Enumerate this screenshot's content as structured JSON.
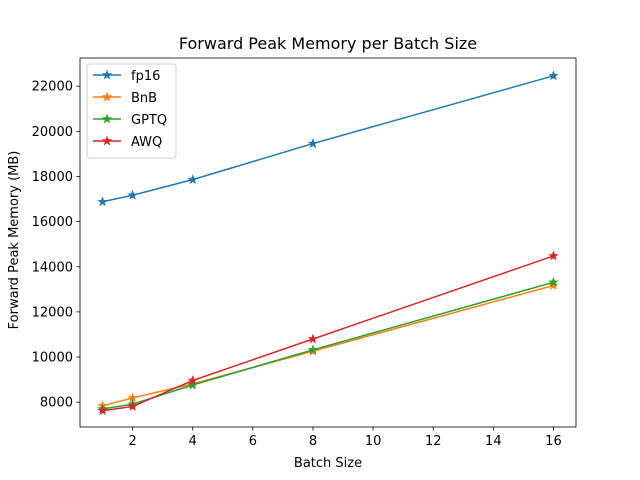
{
  "chart_data": {
    "type": "line",
    "title": "Forward Peak Memory per Batch Size",
    "xlabel": "Batch Size",
    "ylabel": "Forward Peak Memory (MB)",
    "xlim": [
      0.25,
      16.75
    ],
    "ylim": [
      6900,
      23250
    ],
    "xticks": [
      2,
      4,
      6,
      8,
      10,
      12,
      14,
      16
    ],
    "yticks": [
      8000,
      10000,
      12000,
      14000,
      16000,
      18000,
      20000,
      22000
    ],
    "x": [
      1,
      2,
      4,
      8,
      16
    ],
    "marker": "star",
    "grid": false,
    "legend_position": "upper left",
    "series": [
      {
        "name": "fp16",
        "color": "#1f77b4",
        "values": [
          16880,
          17170,
          17860,
          19460,
          22460
        ]
      },
      {
        "name": "BnB",
        "color": "#ff7f0e",
        "values": [
          7840,
          8190,
          8810,
          10260,
          13170
        ]
      },
      {
        "name": "GPTQ",
        "color": "#2ca02c",
        "values": [
          7700,
          7910,
          8760,
          10320,
          13310
        ]
      },
      {
        "name": "AWQ",
        "color": "#d62728",
        "values": [
          7620,
          7810,
          8960,
          10800,
          14480
        ]
      }
    ]
  }
}
